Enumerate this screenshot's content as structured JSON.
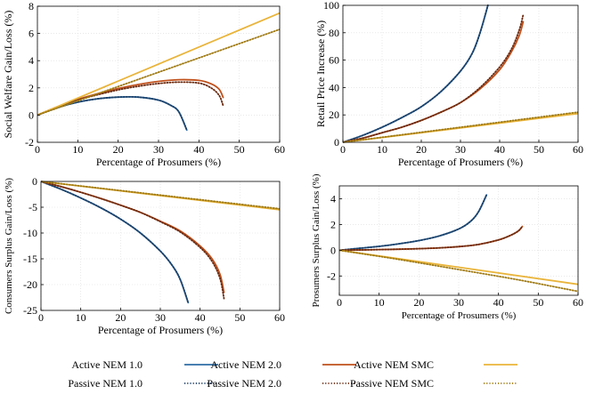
{
  "colors": {
    "nem1": "#2e6da4",
    "nem2": "#c0511c",
    "smc": "#e9b43a",
    "grid": "#dcdcdc",
    "axis": "#000000"
  },
  "legend": {
    "entries": [
      {
        "label": "Active NEM 1.0",
        "series": "nem1",
        "style": "solid"
      },
      {
        "label": "Active NEM 2.0",
        "series": "nem2",
        "style": "solid"
      },
      {
        "label": "Active NEM SMC",
        "series": "smc",
        "style": "solid"
      },
      {
        "label": "Passive NEM 1.0",
        "series": "nem1",
        "style": "dotted"
      },
      {
        "label": "Passive NEM 2.0",
        "series": "nem2",
        "style": "dotted"
      },
      {
        "label": "Passive NEM SMC",
        "series": "smc",
        "style": "dotted"
      }
    ]
  },
  "chart_data": [
    {
      "type": "line",
      "ylabel": "Social Welfare Gain/Loss (%)",
      "xlabel": "Percentage of Prosumers (%)",
      "xlim": [
        0,
        60
      ],
      "ylim": [
        -2,
        8
      ],
      "xticks": [
        0,
        10,
        20,
        30,
        40,
        50,
        60
      ],
      "yticks": [
        -2,
        0,
        2,
        4,
        6,
        8
      ],
      "grid": true,
      "series": [
        {
          "name": "Active NEM 1.0",
          "color": "nem1",
          "style": "solid",
          "x": [
            0,
            5,
            10,
            15,
            20,
            25,
            30,
            33,
            35,
            37
          ],
          "y": [
            0,
            0.55,
            0.95,
            1.2,
            1.32,
            1.32,
            1.1,
            0.72,
            0.25,
            -1.1
          ]
        },
        {
          "name": "Passive NEM 1.0",
          "color": "nem1",
          "style": "dotted",
          "x": [
            0,
            5,
            10,
            15,
            20,
            25,
            30,
            33,
            35,
            37
          ],
          "y": [
            0,
            0.55,
            0.95,
            1.2,
            1.32,
            1.32,
            1.1,
            0.72,
            0.25,
            -1.1
          ]
        },
        {
          "name": "Active NEM 2.0",
          "color": "nem2",
          "style": "solid",
          "x": [
            0,
            5,
            10,
            15,
            20,
            25,
            30,
            35,
            40,
            43,
            45,
            46
          ],
          "y": [
            0,
            0.62,
            1.15,
            1.58,
            1.95,
            2.25,
            2.48,
            2.6,
            2.55,
            2.3,
            1.9,
            1.3
          ]
        },
        {
          "name": "Passive NEM 2.0",
          "color": "nem2",
          "style": "dotted",
          "x": [
            0,
            5,
            10,
            15,
            20,
            25,
            30,
            35,
            40,
            43,
            45,
            46
          ],
          "y": [
            0,
            0.6,
            1.1,
            1.5,
            1.85,
            2.12,
            2.32,
            2.42,
            2.35,
            2.0,
            1.45,
            0.7
          ]
        },
        {
          "name": "Active NEM SMC",
          "color": "smc",
          "style": "solid",
          "x": [
            0,
            60
          ],
          "y": [
            0,
            7.5
          ]
        },
        {
          "name": "Passive NEM SMC",
          "color": "smc",
          "style": "dotted",
          "x": [
            0,
            60
          ],
          "y": [
            0,
            6.3
          ]
        }
      ]
    },
    {
      "type": "line",
      "ylabel": "Retail Price Increase (%)",
      "xlabel": "Percentage of Prosumers (%)",
      "xlim": [
        0,
        60
      ],
      "ylim": [
        0,
        100
      ],
      "xticks": [
        0,
        10,
        20,
        30,
        40,
        50,
        60
      ],
      "yticks": [
        0,
        20,
        40,
        60,
        80,
        100
      ],
      "grid": true,
      "series": [
        {
          "name": "Active NEM 1.0",
          "color": "nem1",
          "style": "solid",
          "x": [
            0,
            5,
            10,
            15,
            20,
            25,
            30,
            33,
            35,
            37
          ],
          "y": [
            0,
            5,
            11,
            18,
            26,
            37,
            52,
            65,
            80,
            100
          ]
        },
        {
          "name": "Passive NEM 1.0",
          "color": "nem1",
          "style": "dotted",
          "x": [
            0,
            5,
            10,
            15,
            20,
            25,
            30,
            33,
            35,
            37
          ],
          "y": [
            0,
            5,
            11,
            18,
            26,
            37,
            52,
            65,
            80,
            100
          ]
        },
        {
          "name": "Active NEM 2.0",
          "color": "nem2",
          "style": "solid",
          "x": [
            0,
            5,
            10,
            15,
            20,
            25,
            30,
            35,
            40,
            43,
            45,
            46
          ],
          "y": [
            0,
            3,
            7,
            11,
            16,
            22,
            29,
            39,
            53,
            66,
            78,
            88
          ]
        },
        {
          "name": "Passive NEM 2.0",
          "color": "nem2",
          "style": "dotted",
          "x": [
            0,
            5,
            10,
            15,
            20,
            25,
            30,
            35,
            40,
            43,
            45,
            46
          ],
          "y": [
            0,
            3,
            7,
            11,
            16,
            22,
            29,
            40,
            55,
            68,
            82,
            93
          ]
        },
        {
          "name": "Active NEM SMC",
          "color": "smc",
          "style": "solid",
          "x": [
            0,
            60
          ],
          "y": [
            0,
            21
          ]
        },
        {
          "name": "Passive NEM SMC",
          "color": "smc",
          "style": "dotted",
          "x": [
            0,
            60
          ],
          "y": [
            0,
            22
          ]
        }
      ]
    },
    {
      "type": "line",
      "ylabel": "Consumers Surplus Gain/Loss (%)",
      "xlabel": "Percentage of Prosumers (%)",
      "xlim": [
        0,
        60
      ],
      "ylim": [
        -25,
        0
      ],
      "xticks": [
        0,
        10,
        20,
        30,
        40,
        50,
        60
      ],
      "yticks": [
        -25,
        -20,
        -15,
        -10,
        -5,
        0
      ],
      "grid": true,
      "series": [
        {
          "name": "Active NEM 1.0",
          "color": "nem1",
          "style": "solid",
          "x": [
            0,
            5,
            10,
            15,
            20,
            25,
            30,
            33,
            35,
            37
          ],
          "y": [
            0,
            -1.5,
            -3.2,
            -5.1,
            -7.3,
            -10.0,
            -13.5,
            -16.3,
            -19.0,
            -23.5
          ]
        },
        {
          "name": "Passive NEM 1.0",
          "color": "nem1",
          "style": "dotted",
          "x": [
            0,
            5,
            10,
            15,
            20,
            25,
            30,
            33,
            35,
            37
          ],
          "y": [
            0,
            -1.5,
            -3.2,
            -5.1,
            -7.3,
            -10.0,
            -13.5,
            -16.3,
            -19.0,
            -23.5
          ]
        },
        {
          "name": "Active NEM 2.0",
          "color": "nem2",
          "style": "solid",
          "x": [
            0,
            5,
            10,
            15,
            20,
            25,
            30,
            35,
            40,
            43,
            45,
            46
          ],
          "y": [
            0,
            -1.0,
            -2.1,
            -3.3,
            -4.6,
            -6.0,
            -7.7,
            -9.6,
            -12.5,
            -15.0,
            -18.0,
            -21.5
          ]
        },
        {
          "name": "Passive NEM 2.0",
          "color": "nem2",
          "style": "dotted",
          "x": [
            0,
            5,
            10,
            15,
            20,
            25,
            30,
            35,
            40,
            43,
            45,
            46
          ],
          "y": [
            0,
            -1.0,
            -2.1,
            -3.3,
            -4.6,
            -6.0,
            -7.8,
            -9.8,
            -12.8,
            -15.5,
            -18.8,
            -22.7
          ]
        },
        {
          "name": "Active NEM SMC",
          "color": "smc",
          "style": "solid",
          "x": [
            0,
            60
          ],
          "y": [
            0,
            -5.5
          ]
        },
        {
          "name": "Passive NEM SMC",
          "color": "smc",
          "style": "dotted",
          "x": [
            0,
            60
          ],
          "y": [
            0,
            -5.3
          ]
        }
      ]
    },
    {
      "type": "line",
      "ylabel": "Prosumers Surplus Gain/Loss (%)",
      "xlabel": "Percentage of Prosumers (%)",
      "xlim": [
        0,
        60
      ],
      "ylim": [
        -3.5,
        5
      ],
      "xticks": [
        0,
        10,
        20,
        30,
        40,
        50,
        60
      ],
      "yticks": [
        -2,
        0,
        2,
        4
      ],
      "grid": true,
      "series": [
        {
          "name": "Active NEM 1.0",
          "color": "nem1",
          "style": "solid",
          "x": [
            0,
            5,
            10,
            15,
            20,
            25,
            30,
            33,
            35,
            37
          ],
          "y": [
            0,
            0.15,
            0.3,
            0.5,
            0.75,
            1.1,
            1.65,
            2.25,
            3.0,
            4.3
          ]
        },
        {
          "name": "Passive NEM 1.0",
          "color": "nem1",
          "style": "dotted",
          "x": [
            0,
            5,
            10,
            15,
            20,
            25,
            30,
            33,
            35,
            37
          ],
          "y": [
            0,
            0.15,
            0.3,
            0.5,
            0.75,
            1.1,
            1.65,
            2.25,
            3.0,
            4.3
          ]
        },
        {
          "name": "Active NEM 2.0",
          "color": "nem2",
          "style": "solid",
          "x": [
            0,
            5,
            10,
            15,
            20,
            25,
            30,
            35,
            40,
            43,
            45,
            46
          ],
          "y": [
            0,
            0.02,
            0.05,
            0.08,
            0.12,
            0.18,
            0.28,
            0.45,
            0.8,
            1.15,
            1.5,
            1.85
          ]
        },
        {
          "name": "Passive NEM 2.0",
          "color": "nem2",
          "style": "dotted",
          "x": [
            0,
            5,
            10,
            15,
            20,
            25,
            30,
            35,
            40,
            43,
            45,
            46
          ],
          "y": [
            0,
            0.02,
            0.05,
            0.08,
            0.12,
            0.18,
            0.28,
            0.45,
            0.8,
            1.15,
            1.5,
            1.85
          ]
        },
        {
          "name": "Active NEM SMC",
          "color": "smc",
          "style": "solid",
          "x": [
            0,
            60
          ],
          "y": [
            0,
            -2.65
          ]
        },
        {
          "name": "Passive NEM SMC",
          "color": "smc",
          "style": "dotted",
          "x": [
            0,
            15,
            30,
            45,
            60
          ],
          "y": [
            0,
            -0.72,
            -1.5,
            -2.3,
            -3.2
          ]
        }
      ]
    }
  ]
}
